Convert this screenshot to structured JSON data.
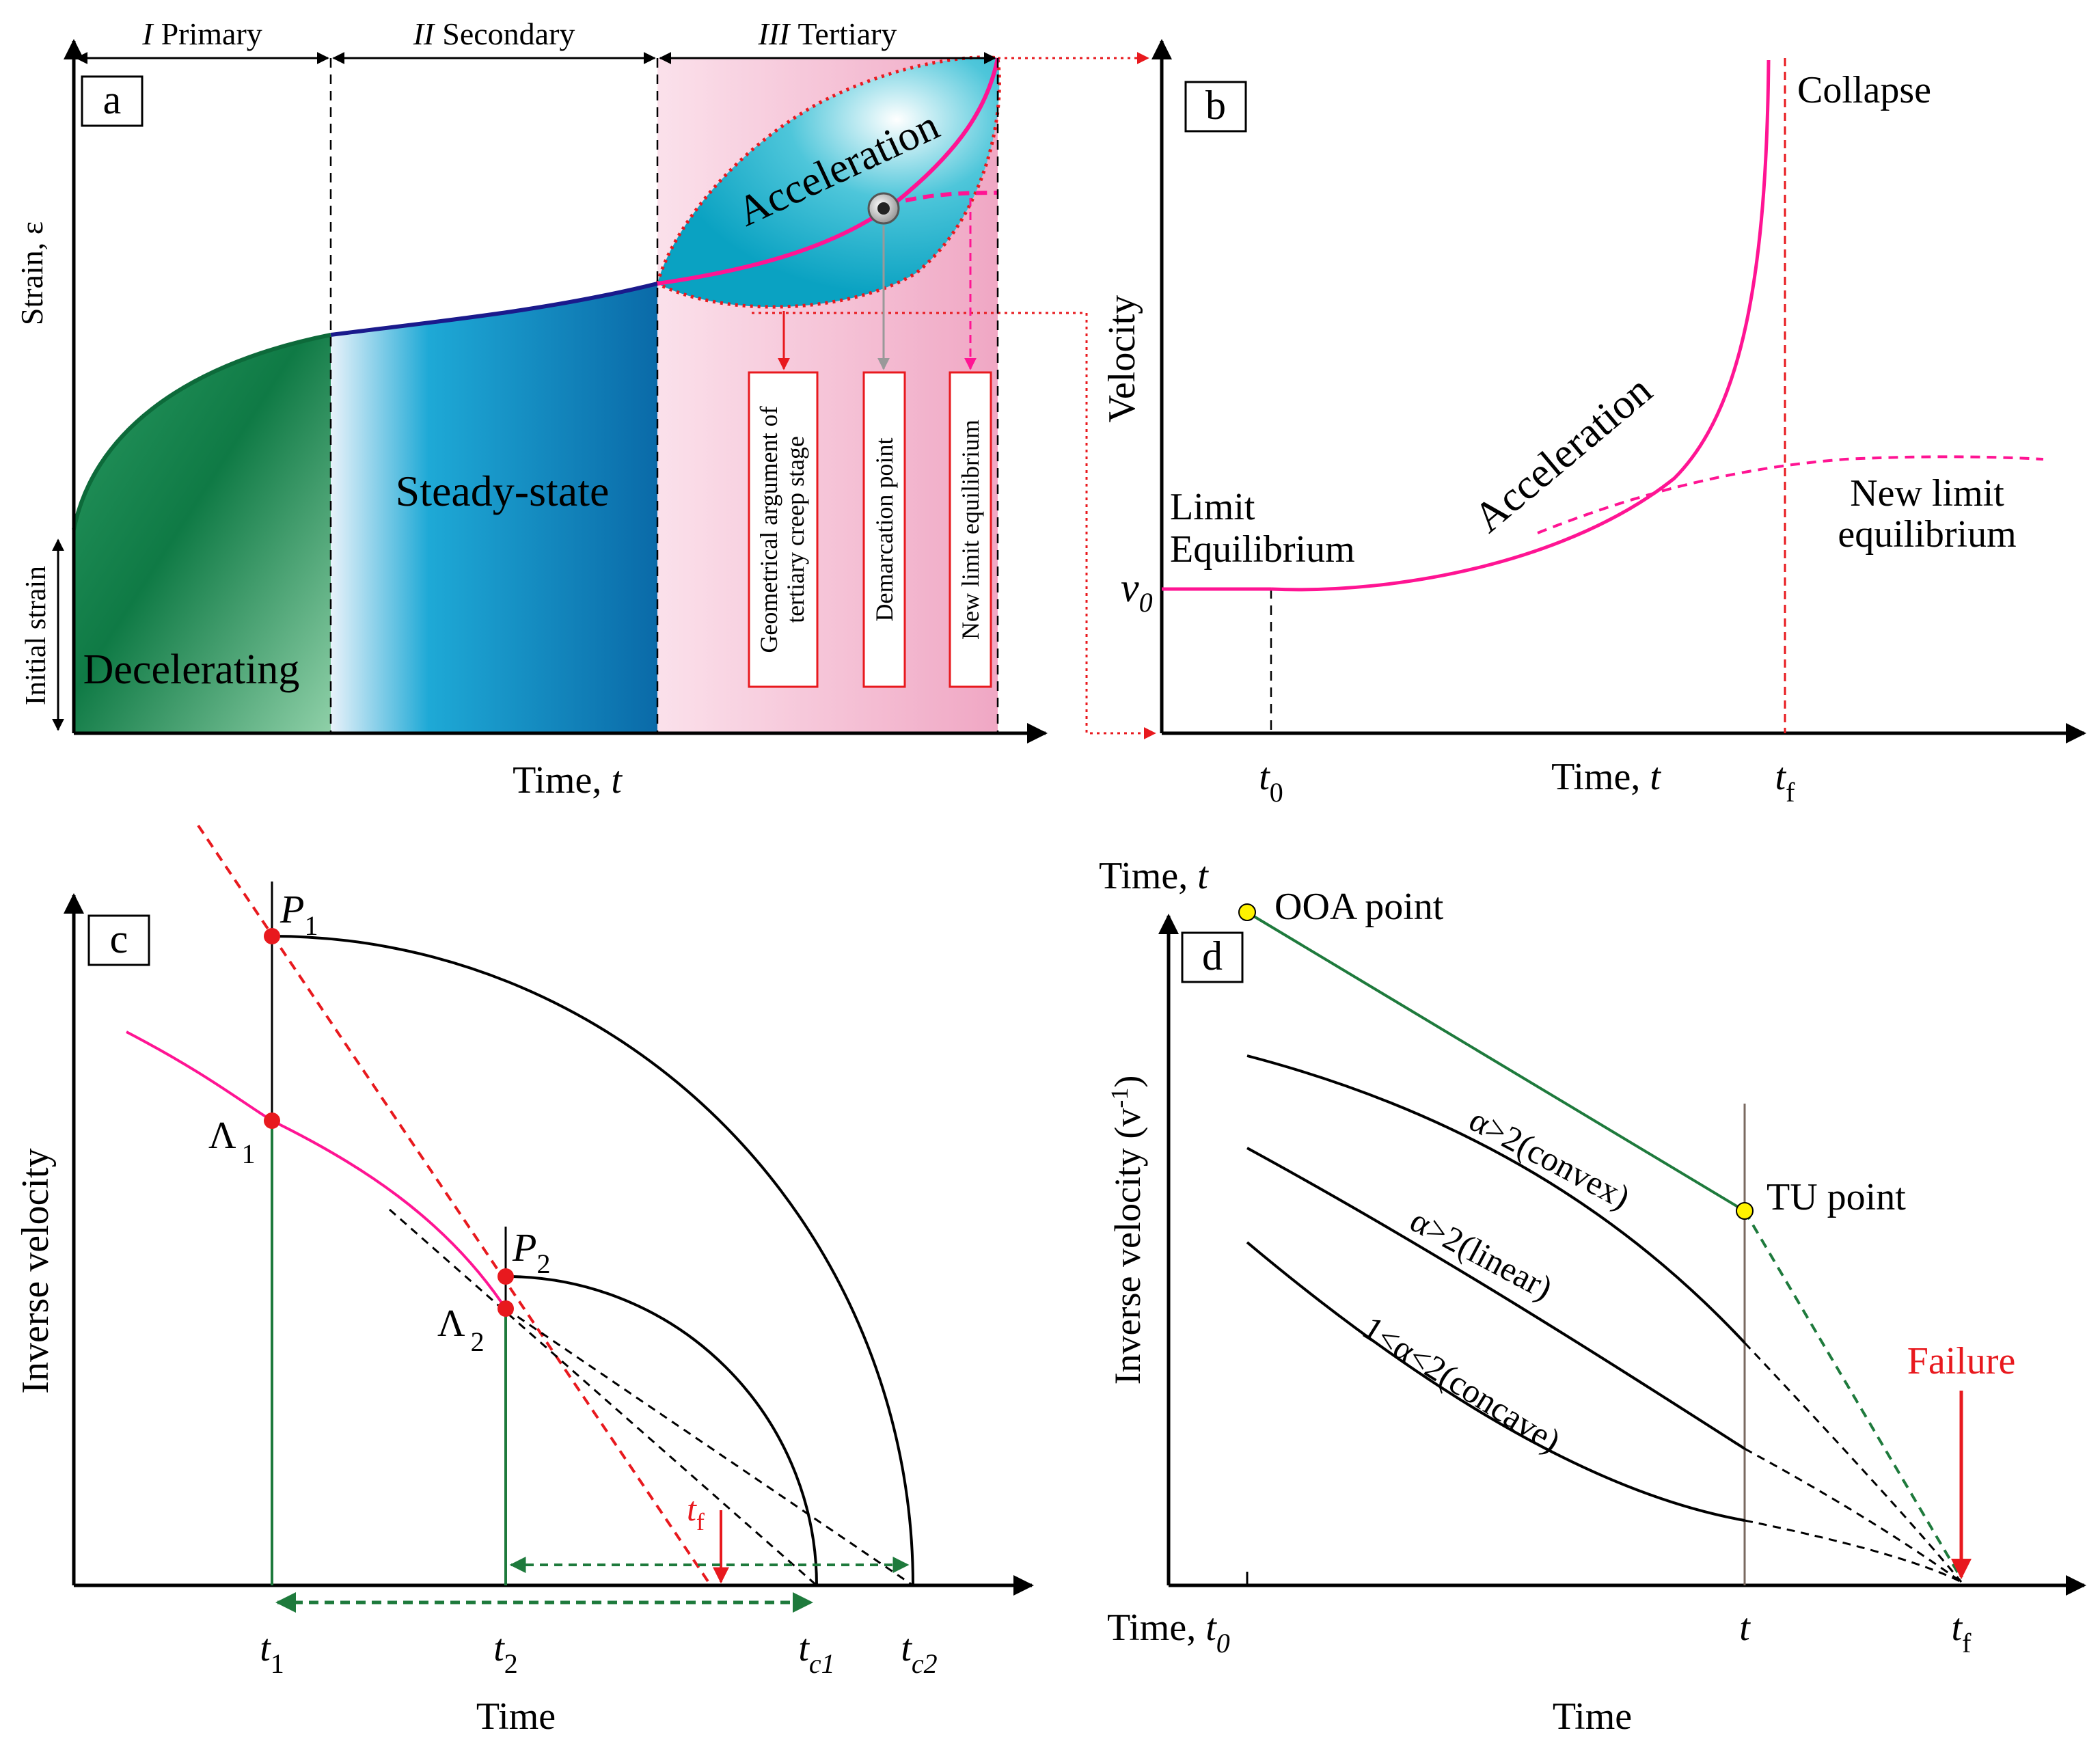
{
  "panels": {
    "a": {
      "label": "a",
      "stage_numerals": [
        "I",
        "II",
        "III"
      ],
      "stage_names": [
        "Primary",
        "Secondary",
        "Tertiary"
      ],
      "y_axis": "Strain, ε",
      "x_axis_word": "Time, ",
      "x_axis_var": "t",
      "initial_strain": "Initial strain",
      "region_decelerating": "Decelerating",
      "region_steady": "Steady-state",
      "region_acceleration": "Acceleration",
      "callouts": [
        "Geometrical argument of",
        "tertiary creep stage",
        "Demarcation point",
        "New limit equilibrium"
      ],
      "colors": {
        "primary": "#1e8a5a",
        "secondary": "#0a7fb8",
        "tertiary_bg": "#f2b6cd",
        "curve": "#ff1493",
        "steady_line": "#1a1a8c"
      }
    },
    "b": {
      "label": "b",
      "y_axis": "Velocity",
      "x_axis_word": "Time, ",
      "x_axis_var": "t",
      "v0": "v",
      "v0_sub": "0",
      "t0": "t",
      "t0_sub": "0",
      "tf": "t",
      "tf_sub": "f",
      "collapse": "Collapse",
      "acceleration": "Acceleration",
      "limit_line1": "Limit",
      "limit_line2": "Equilibrium",
      "new_limit_line1": "New limit",
      "new_limit_line2": "equilibrium"
    },
    "c": {
      "label": "c",
      "y_axis": "Inverse velocity",
      "x_axis": "Time",
      "p1": "P",
      "p1_sub": "1",
      "p2": "P",
      "p2_sub": "2",
      "lambda1": "Λ",
      "lambda1_sub": "1",
      "lambda2": "Λ",
      "lambda2_sub": "2",
      "tf": "t",
      "tf_sub": "f",
      "ticks": [
        {
          "v": "t",
          "s": "1"
        },
        {
          "v": "t",
          "s": "2"
        },
        {
          "v": "t",
          "s": "c1"
        },
        {
          "v": "t",
          "s": "c2"
        }
      ]
    },
    "d": {
      "label": "d",
      "y_top_word": "Time, ",
      "y_top_var": "t",
      "y_axis_main": "Inverse velocity (v",
      "y_axis_sup": "-1",
      "y_axis_end": ")",
      "x_axis": "Time",
      "ooa": "OOA point",
      "tu": "TU point",
      "failure": "Failure",
      "x_t0_word": "Time, ",
      "x_t0_var": "t",
      "x_t0_sub": "0",
      "x_t": "t",
      "x_tf": "t",
      "x_tf_sub": "f",
      "curve_convex": "α>2(convex)",
      "curve_linear": "α>2(linear)",
      "curve_concave": "1<α<2(concave)"
    }
  }
}
